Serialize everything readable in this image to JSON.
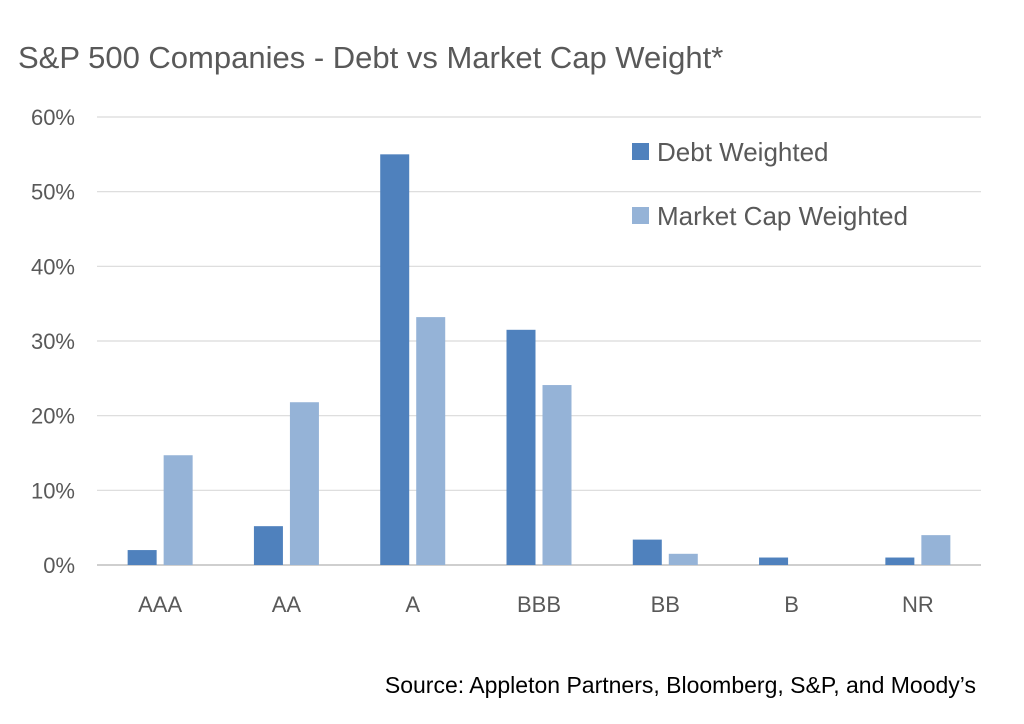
{
  "chart_data": {
    "type": "bar",
    "title": "S&P 500 Companies - Debt vs Market Cap Weight*",
    "xlabel": "",
    "ylabel": "",
    "categories": [
      "AAA",
      "AA",
      "A",
      "BBB",
      "BB",
      "B",
      "NR"
    ],
    "series": [
      {
        "name": "Debt Weighted",
        "values": [
          2,
          5.2,
          55,
          31.5,
          3.4,
          1,
          1
        ],
        "color": "#4F81BD"
      },
      {
        "name": "Market Cap Weighted",
        "values": [
          14.7,
          21.8,
          33.2,
          24.1,
          1.5,
          0,
          4
        ],
        "color": "#95B3D7"
      }
    ],
    "ylim": [
      0,
      60
    ],
    "yticks": [
      0,
      10,
      20,
      30,
      40,
      50,
      60
    ],
    "ytick_labels": [
      "0%",
      "10%",
      "20%",
      "30%",
      "40%",
      "50%",
      "60%"
    ],
    "grid": true,
    "legend_position": "top-right"
  },
  "source": "Source: Appleton Partners, Bloomberg, S&P, and Moody’s"
}
